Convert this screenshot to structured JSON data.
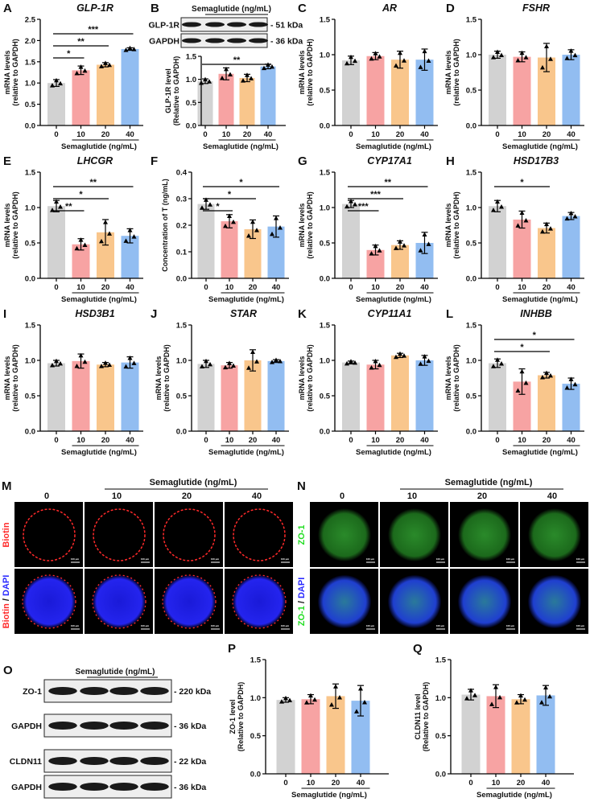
{
  "colors": {
    "c0": "#d2d2d2",
    "c10": "#f7a3a3",
    "c20": "#f9c68c",
    "c40": "#92bdf1",
    "bracket": "#000000"
  },
  "chart_data": [
    {
      "panel": "A",
      "type": "bar",
      "title": "GLP-1R",
      "ylabel": [
        "mRNA levels",
        "(relative to GAPDH)"
      ],
      "xlabel": "Semaglutide (ng/mL)",
      "categories": [
        "0",
        "10",
        "20",
        "40"
      ],
      "values": [
        1.0,
        1.3,
        1.43,
        1.8
      ],
      "sd": [
        0.08,
        0.1,
        0.05,
        0.03
      ],
      "ylim": [
        0,
        2.5
      ],
      "yticks": [
        "0.0",
        "0.5",
        "1.0",
        "1.5",
        "2.0",
        "2.5"
      ],
      "significance": [
        {
          "from": 0,
          "to": 1,
          "label": "*"
        },
        {
          "from": 0,
          "to": 2,
          "label": "**"
        },
        {
          "from": 0,
          "to": 3,
          "label": "***"
        }
      ]
    },
    {
      "panel": "B",
      "type": "bar",
      "title": "",
      "ylabel": [
        "GLP-1R level",
        "(Relative to GAPDH)"
      ],
      "xlabel": "Semaglutide (ng/mL)",
      "categories": [
        "0",
        "10",
        "20",
        "40"
      ],
      "values": [
        0.96,
        1.12,
        1.03,
        1.28
      ],
      "sd": [
        0.05,
        0.13,
        0.08,
        0.05
      ],
      "ylim": [
        0,
        1.5
      ],
      "yticks": [
        "0.0",
        "0.5",
        "1.0",
        "1.5"
      ],
      "significance": [
        {
          "from": 0,
          "to": 3,
          "label": "**"
        }
      ]
    },
    {
      "panel": "C",
      "type": "bar",
      "title": "AR",
      "ylabel": [
        "mRNA levels",
        "(relative to GAPDH)"
      ],
      "xlabel": "Semaglutide (ng/mL)",
      "categories": [
        "0",
        "10",
        "20",
        "40"
      ],
      "values": [
        0.92,
        0.98,
        0.93,
        0.93
      ],
      "sd": [
        0.06,
        0.05,
        0.12,
        0.15
      ],
      "ylim": [
        0,
        1.5
      ],
      "yticks": [
        "0.0",
        "0.5",
        "1.0",
        "1.5"
      ],
      "significance": []
    },
    {
      "panel": "D",
      "type": "bar",
      "title": "FSHR",
      "ylabel": [
        "mRNA levels",
        "(relative to GAPDH)"
      ],
      "xlabel": "Semaglutide (ng/mL)",
      "categories": [
        "0",
        "10",
        "20",
        "40"
      ],
      "values": [
        1.0,
        0.97,
        0.96,
        1.0
      ],
      "sd": [
        0.05,
        0.07,
        0.2,
        0.07
      ],
      "ylim": [
        0,
        1.5
      ],
      "yticks": [
        "0.0",
        "0.5",
        "1.0",
        "1.5"
      ],
      "significance": []
    },
    {
      "panel": "E",
      "type": "bar",
      "title": "LHCGR",
      "ylabel": [
        "mRNA levels",
        "(relative to GAPDH)"
      ],
      "xlabel": "Semaglutide (ng/mL)",
      "categories": [
        "0",
        "10",
        "20",
        "40"
      ],
      "values": [
        1.02,
        0.48,
        0.65,
        0.6
      ],
      "sd": [
        0.08,
        0.08,
        0.18,
        0.1
      ],
      "ylim": [
        0,
        1.5
      ],
      "yticks": [
        "0.0",
        "0.5",
        "1.0",
        "1.5"
      ],
      "significance": [
        {
          "from": 0,
          "to": 1,
          "label": "**"
        },
        {
          "from": 0,
          "to": 2,
          "label": "*"
        },
        {
          "from": 0,
          "to": 3,
          "label": "**"
        }
      ]
    },
    {
      "panel": "F",
      "type": "bar",
      "title": "",
      "ylabel": [
        "Concentration of T (ng/mL)"
      ],
      "xlabel": "Semaglutide (ng/mL)",
      "categories": [
        "0",
        "10",
        "20",
        "40"
      ],
      "values": [
        0.28,
        0.215,
        0.185,
        0.195
      ],
      "sd": [
        0.02,
        0.025,
        0.035,
        0.04
      ],
      "ylim": [
        0,
        0.4
      ],
      "yticks": [
        "0.0",
        "0.1",
        "0.2",
        "0.3",
        "0.4"
      ],
      "significance": [
        {
          "from": 0,
          "to": 1,
          "label": "*"
        },
        {
          "from": 0,
          "to": 2,
          "label": "*"
        },
        {
          "from": 0,
          "to": 3,
          "label": "*"
        }
      ]
    },
    {
      "panel": "G",
      "type": "bar",
      "title": "CYP17A1",
      "ylabel": [
        "mRNA levels",
        "(relative to GAPDH)"
      ],
      "xlabel": "Semaglutide (ng/mL)",
      "categories": [
        "0",
        "10",
        "20",
        "40"
      ],
      "values": [
        1.05,
        0.4,
        0.47,
        0.5
      ],
      "sd": [
        0.05,
        0.07,
        0.06,
        0.15
      ],
      "ylim": [
        0,
        1.5
      ],
      "yticks": [
        "0.0",
        "0.5",
        "1.0",
        "1.5"
      ],
      "significance": [
        {
          "from": 0,
          "to": 1,
          "label": "***"
        },
        {
          "from": 0,
          "to": 2,
          "label": "***"
        },
        {
          "from": 0,
          "to": 3,
          "label": "**"
        }
      ]
    },
    {
      "panel": "H",
      "type": "bar",
      "title": "HSD17B3",
      "ylabel": [
        "mRNA levels",
        "(relative to GAPDH)"
      ],
      "xlabel": "Semaglutide (ng/mL)",
      "categories": [
        "0",
        "10",
        "20",
        "40"
      ],
      "values": [
        1.02,
        0.83,
        0.71,
        0.88
      ],
      "sd": [
        0.08,
        0.12,
        0.07,
        0.05
      ],
      "ylim": [
        0,
        1.5
      ],
      "yticks": [
        "0.0",
        "0.5",
        "1.0",
        "1.5"
      ],
      "significance": [
        {
          "from": 0,
          "to": 2,
          "label": "*"
        }
      ]
    },
    {
      "panel": "I",
      "type": "bar",
      "title": "HSD3B1",
      "ylabel": [
        "mRNA levels",
        "(relative to GAPDH)"
      ],
      "xlabel": "Semaglutide (ng/mL)",
      "categories": [
        "0",
        "10",
        "20",
        "40"
      ],
      "values": [
        0.96,
        0.99,
        0.94,
        0.97
      ],
      "sd": [
        0.04,
        0.1,
        0.03,
        0.08
      ],
      "ylim": [
        0,
        1.5
      ],
      "yticks": [
        "0.0",
        "0.5",
        "1.0",
        "1.5"
      ],
      "significance": []
    },
    {
      "panel": "J",
      "type": "bar",
      "title": "STAR",
      "ylabel": [
        "mRNA levels",
        "(relative to GAPDH)"
      ],
      "xlabel": "Semaglutide (ng/mL)",
      "categories": [
        "0",
        "10",
        "20",
        "40"
      ],
      "values": [
        0.95,
        0.93,
        1.0,
        0.99
      ],
      "sd": [
        0.05,
        0.04,
        0.15,
        0.02
      ],
      "ylim": [
        0,
        1.5
      ],
      "yticks": [
        "0.0",
        "0.5",
        "1.0",
        "1.5"
      ],
      "significance": []
    },
    {
      "panel": "K",
      "type": "bar",
      "title": "CYP11A1",
      "ylabel": [
        "mRNA levels",
        "(relative to GAPDH)"
      ],
      "xlabel": "Semaglutide (ng/mL)",
      "categories": [
        "0",
        "10",
        "20",
        "40"
      ],
      "values": [
        0.97,
        0.94,
        1.07,
        1.0
      ],
      "sd": [
        0.02,
        0.06,
        0.03,
        0.07
      ],
      "ylim": [
        0,
        1.5
      ],
      "yticks": [
        "0.0",
        "0.5",
        "1.0",
        "1.5"
      ],
      "significance": []
    },
    {
      "panel": "L",
      "type": "bar",
      "title": "INHBB",
      "ylabel": [
        "mRNA levels",
        "(relative to GAPDH)"
      ],
      "xlabel": "Semaglutide (ng/mL)",
      "categories": [
        "0",
        "10",
        "20",
        "40"
      ],
      "values": [
        0.96,
        0.7,
        0.79,
        0.67
      ],
      "sd": [
        0.06,
        0.18,
        0.04,
        0.08
      ],
      "ylim": [
        0,
        1.5
      ],
      "yticks": [
        "0.0",
        "0.5",
        "1.0",
        "1.5"
      ],
      "significance": [
        {
          "from": 0,
          "to": 2,
          "label": "*"
        },
        {
          "from": 0,
          "to": 3,
          "label": "*"
        }
      ]
    },
    {
      "panel": "P",
      "type": "bar",
      "title": "",
      "ylabel": [
        "ZO-1 level",
        "(Relative to GAPDH)"
      ],
      "xlabel": "Semaglutide (ng/mL)",
      "categories": [
        "0",
        "10",
        "20",
        "40"
      ],
      "values": [
        0.97,
        0.98,
        1.02,
        0.96
      ],
      "sd": [
        0.03,
        0.06,
        0.16,
        0.2
      ],
      "ylim": [
        0,
        1.5
      ],
      "yticks": [
        "0.0",
        "0.5",
        "1.0",
        "1.5"
      ],
      "significance": []
    },
    {
      "panel": "Q",
      "type": "bar",
      "title": "",
      "ylabel": [
        "CLDN11 level",
        "(Relative to GAPDH)"
      ],
      "xlabel": "Semaglutide (ng/mL)",
      "categories": [
        "0",
        "10",
        "20",
        "40"
      ],
      "values": [
        1.04,
        1.02,
        0.98,
        1.03
      ],
      "sd": [
        0.07,
        0.15,
        0.06,
        0.13
      ],
      "ylim": [
        0,
        1.5
      ],
      "yticks": [
        "0.0",
        "0.5",
        "1.0",
        "1.5"
      ],
      "significance": []
    }
  ],
  "blot_B": {
    "letter": "B",
    "header": "Semaglutide (ng/mL)",
    "lanes": [
      "0",
      "10",
      "20",
      "40"
    ],
    "rows": [
      {
        "label": "GLP-1R",
        "size": "- 51 kDa"
      },
      {
        "label": "GAPDH",
        "size": "- 36 kDa"
      }
    ]
  },
  "blot_O": {
    "letter": "O",
    "header": "Semaglutide (ng/mL)",
    "lanes": [
      "0",
      "10",
      "20",
      "40"
    ],
    "rows": [
      {
        "label": "ZO-1",
        "size": "- 220 kDa"
      },
      {
        "label": "GAPDH",
        "size": "- 36 kDa"
      },
      {
        "label": "CLDN11",
        "size": "- 22 kDa"
      },
      {
        "label": "GAPDH",
        "size": "- 36 kDa"
      }
    ]
  },
  "micro_M": {
    "letter": "M",
    "header": "Semaglutide (ng/mL)",
    "lanes": [
      "0",
      "10",
      "20",
      "40"
    ],
    "row_labels": [
      {
        "a": "Biotin",
        "b": ""
      },
      {
        "a": "Biotin",
        "b": "DAPI"
      }
    ],
    "scale": "100 μm",
    "colorA": "#ff2a2a",
    "colorB": "#2a2aff"
  },
  "micro_N": {
    "letter": "N",
    "header": "Semaglutide (ng/mL)",
    "lanes": [
      "0",
      "10",
      "20",
      "40"
    ],
    "row_labels": [
      {
        "a": "ZO-1",
        "b": ""
      },
      {
        "a": "ZO-1",
        "b": "DAPI"
      }
    ],
    "scale": "100 μm",
    "colorA": "#22dd22",
    "colorB": "#2a2aff"
  }
}
